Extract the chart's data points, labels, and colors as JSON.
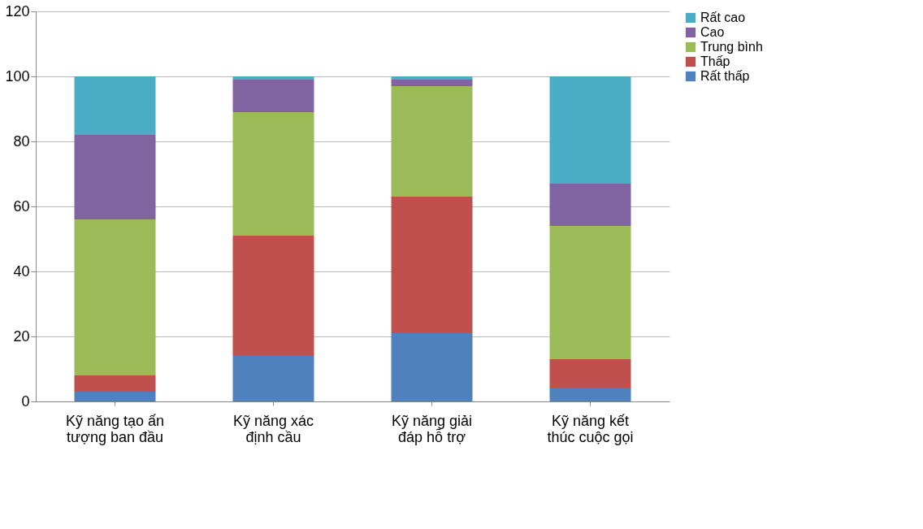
{
  "chart_data": {
    "type": "bar",
    "stacked": true,
    "categories": [
      "Kỹ năng tạo ấn tượng ban đầu",
      "Kỹ năng xác định cầu",
      "Kỹ năng giải đáp hỗ trợ",
      "Kỹ năng kết thúc cuộc gọi"
    ],
    "series": [
      {
        "name": "Rất thấp",
        "color": "#4f81bd",
        "values": [
          3,
          14,
          21,
          4
        ]
      },
      {
        "name": "Thấp",
        "color": "#c0504d",
        "values": [
          5,
          37,
          42,
          9
        ]
      },
      {
        "name": "Trung bình",
        "color": "#9bbb59",
        "values": [
          48,
          38,
          34,
          41
        ]
      },
      {
        "name": "Cao",
        "color": "#8064a2",
        "values": [
          26,
          10,
          2,
          13
        ]
      },
      {
        "name": "Rất cao",
        "color": "#4bacc6",
        "values": [
          18,
          1,
          1,
          33
        ]
      }
    ],
    "ylim": [
      0,
      120
    ],
    "yticks": [
      0,
      20,
      40,
      60,
      80,
      100,
      120
    ],
    "grid": "y",
    "legend": "right"
  }
}
